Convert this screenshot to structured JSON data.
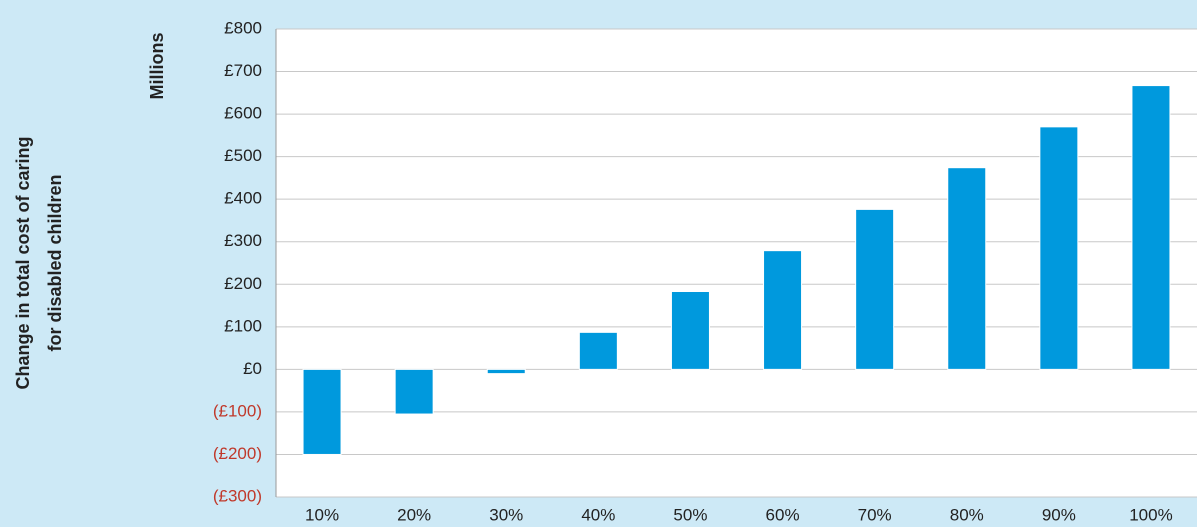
{
  "chart_data": {
    "type": "bar",
    "ylabel": [
      "Change in total cost of caring",
      "for disabled children"
    ],
    "y_unit_label": "Millions",
    "categories": [
      "10%",
      "20%",
      "30%",
      "40%",
      "50%",
      "60%",
      "70%",
      "80%",
      "90%",
      "100%"
    ],
    "values": [
      -200,
      -105,
      -10,
      87,
      183,
      279,
      376,
      474,
      570,
      667
    ],
    "color": "#0099dd",
    "background": "#cde9f6",
    "negative_tick_color": "#c0392b",
    "ylim": [
      -300,
      800
    ],
    "yticks": [
      {
        "value": -300,
        "label": "(£300)"
      },
      {
        "value": -200,
        "label": "(£200)"
      },
      {
        "value": -100,
        "label": "(£100)"
      },
      {
        "value": 0,
        "label": "£0"
      },
      {
        "value": 100,
        "label": "£100"
      },
      {
        "value": 200,
        "label": "£200"
      },
      {
        "value": 300,
        "label": "£300"
      },
      {
        "value": 400,
        "label": "£400"
      },
      {
        "value": 500,
        "label": "£500"
      },
      {
        "value": 600,
        "label": "£600"
      },
      {
        "value": 700,
        "label": "£700"
      },
      {
        "value": 800,
        "label": "£800"
      }
    ],
    "grid": true
  }
}
